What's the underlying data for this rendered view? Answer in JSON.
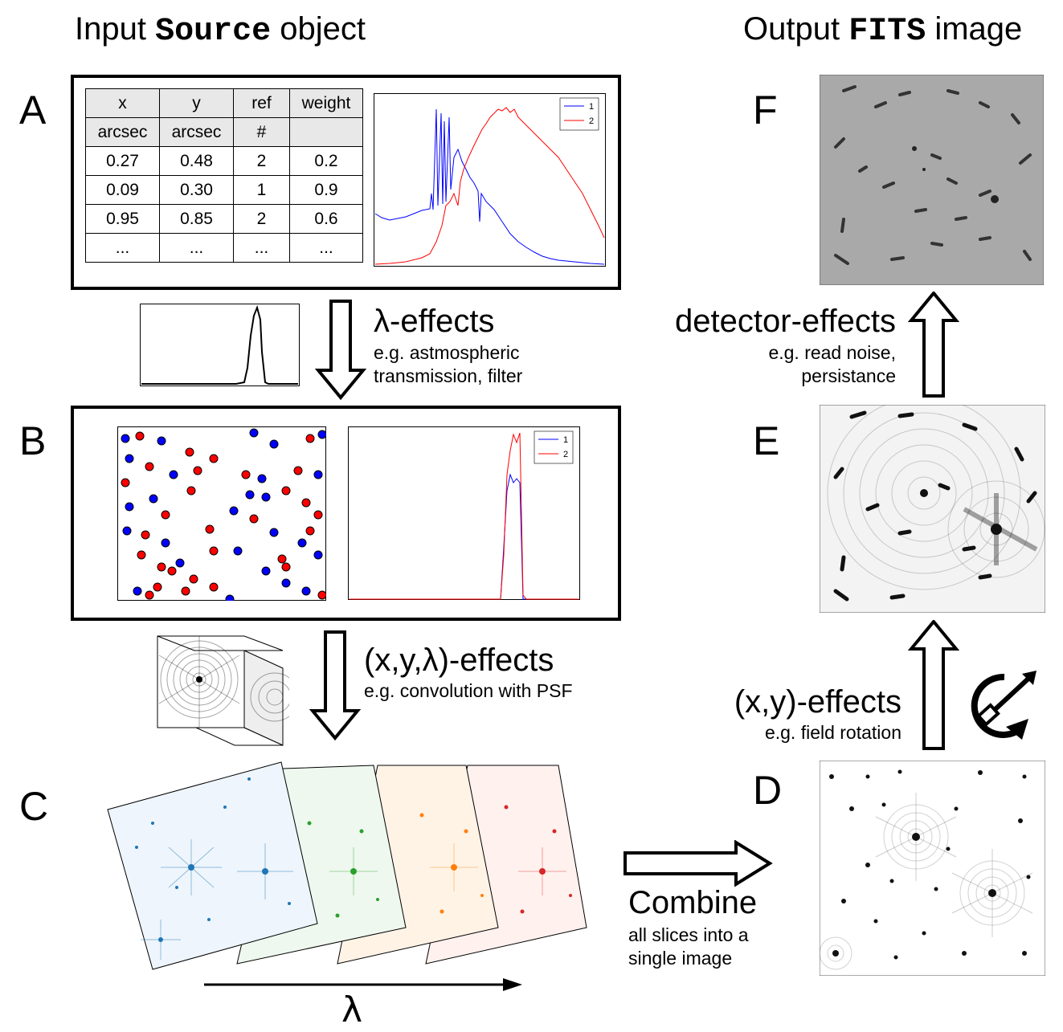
{
  "header": {
    "left_prefix": "Input ",
    "left_mono": "Source",
    "left_suffix": " object",
    "right_prefix": "Output ",
    "right_mono": "FITS",
    "right_suffix": " image"
  },
  "letters": {
    "a": "A",
    "b": "B",
    "c": "C",
    "d": "D",
    "e": "E",
    "f": "F"
  },
  "table": {
    "columns": [
      "x",
      "y",
      "ref",
      "weight"
    ],
    "units": [
      "arcsec",
      "arcsec",
      "#",
      ""
    ],
    "rows": [
      [
        "0.27",
        "0.48",
        "2",
        "0.2"
      ],
      [
        "0.09",
        "0.30",
        "1",
        "0.9"
      ],
      [
        "0.95",
        "0.85",
        "2",
        "0.6"
      ],
      [
        "...",
        "...",
        "...",
        "..."
      ]
    ]
  },
  "legend": {
    "s1": "1",
    "s2": "2"
  },
  "colors": {
    "series1": "#0000ff",
    "series2": "#ff0000",
    "blue": "#1f77b4",
    "green": "#2ca02c",
    "orange": "#ff7f0e",
    "red": "#d62728"
  },
  "effects": {
    "lambda_title": "λ-effects",
    "lambda_sub1": "e.g. astmospheric",
    "lambda_sub2": "transmission, filter",
    "xyl_title": "(x,y,λ)-effects",
    "xyl_sub": "e.g. convolution with PSF",
    "xy_title": "(x,y)-effects",
    "xy_sub": "e.g. field rotation",
    "det_title": "detector-effects",
    "det_sub1": "e.g. read noise,",
    "det_sub2": "persistance"
  },
  "combine": {
    "title": "Combine",
    "sub1": "all slices into a",
    "sub2": "single image"
  },
  "axis": {
    "lambda": "λ"
  },
  "icons": {
    "rotation": "field-rotation-icon",
    "arrow": "arrow-icon"
  }
}
